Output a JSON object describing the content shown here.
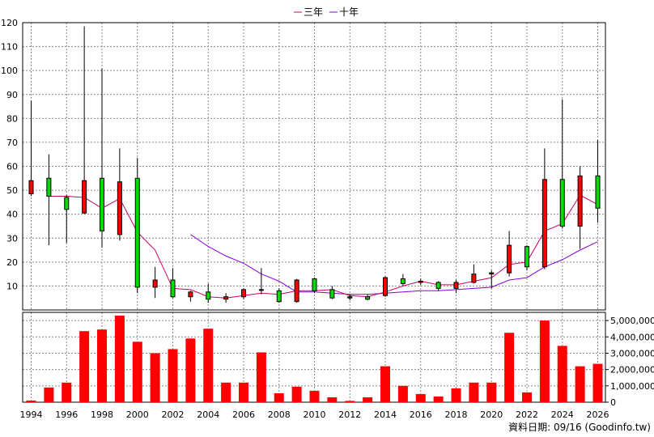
{
  "chart_data": {
    "type": "candlestick",
    "legend": [
      {
        "name": "三年",
        "color": "#cc0066"
      },
      {
        "name": "十年",
        "color": "#8800dd"
      }
    ],
    "source_note": "資料日期: 09/16 (Goodinfo.tw)",
    "x_ticks": [
      "1994",
      "1996",
      "1998",
      "2000",
      "2002",
      "2004",
      "2006",
      "2008",
      "2010",
      "2012",
      "2014",
      "2016",
      "2018",
      "2020",
      "2022",
      "2024",
      "2026"
    ],
    "price_axis": {
      "min": 0,
      "max": 120,
      "ticks": [
        10,
        20,
        30,
        40,
        50,
        60,
        70,
        80,
        90,
        100,
        110,
        120
      ]
    },
    "volume_axis": {
      "min": 0,
      "max": 5500000,
      "ticks": [
        0,
        1000000,
        2000000,
        3000000,
        4000000,
        5000000
      ],
      "tick_labels": [
        "0",
        "1,000,000",
        "2,000,000",
        "3,000,000",
        "4,000,000",
        "5,000,000"
      ]
    },
    "candles": [
      {
        "year": 1994,
        "open": 48.5,
        "close": 54,
        "high": 87.5,
        "low": 47.5
      },
      {
        "year": 1995,
        "open": 55,
        "close": 47.5,
        "high": 65,
        "low": 27
      },
      {
        "year": 1996,
        "open": 47,
        "close": 42,
        "high": 48,
        "low": 28
      },
      {
        "year": 1997,
        "open": 40.5,
        "close": 54,
        "high": 118.5,
        "low": 40
      },
      {
        "year": 1998,
        "open": 55,
        "close": 33,
        "high": 101,
        "low": 26
      },
      {
        "year": 1999,
        "open": 31.5,
        "close": 53.5,
        "high": 67.5,
        "low": 29
      },
      {
        "year": 2000,
        "open": 55,
        "close": 9.5,
        "high": 63.5,
        "low": 7
      },
      {
        "year": 2001,
        "open": 9.5,
        "close": 12.5,
        "high": 18,
        "low": 5
      },
      {
        "year": 2002,
        "open": 12.5,
        "close": 5.5,
        "high": 17.5,
        "low": 5
      },
      {
        "year": 2003,
        "open": 5.5,
        "close": 7.5,
        "high": 8,
        "low": 3.5
      },
      {
        "year": 2004,
        "open": 7.5,
        "close": 4.5,
        "high": 11,
        "low": 3
      },
      {
        "year": 2005,
        "open": 4.5,
        "close": 5.5,
        "high": 7,
        "low": 3
      },
      {
        "year": 2006,
        "open": 5.5,
        "close": 8.5,
        "high": 9,
        "low": 4.5
      },
      {
        "year": 2007,
        "open": 8.5,
        "close": 8.5,
        "high": 17.5,
        "low": 6.5
      },
      {
        "year": 2008,
        "open": 8,
        "close": 3.5,
        "high": 9,
        "low": 3
      },
      {
        "year": 2009,
        "open": 3.5,
        "close": 12.5,
        "high": 13,
        "low": 3
      },
      {
        "year": 2010,
        "open": 13,
        "close": 8,
        "high": 13.5,
        "low": 7
      },
      {
        "year": 2011,
        "open": 8.5,
        "close": 5,
        "high": 10,
        "low": 4.5
      },
      {
        "year": 2012,
        "open": 5,
        "close": 5.5,
        "high": 6.5,
        "low": 4
      },
      {
        "year": 2013,
        "open": 5.5,
        "close": 4.5,
        "high": 6.5,
        "low": 4
      },
      {
        "year": 2014,
        "open": 6,
        "close": 13.5,
        "high": 14,
        "low": 5.5
      },
      {
        "year": 2015,
        "open": 13,
        "close": 11,
        "high": 15,
        "low": 10
      },
      {
        "year": 2016,
        "open": 11.5,
        "close": 12,
        "high": 13,
        "low": 10.5
      },
      {
        "year": 2017,
        "open": 11.5,
        "close": 9,
        "high": 12,
        "low": 8
      },
      {
        "year": 2018,
        "open": 9,
        "close": 11.5,
        "high": 12.5,
        "low": 7
      },
      {
        "year": 2019,
        "open": 11.5,
        "close": 15,
        "high": 19,
        "low": 11
      },
      {
        "year": 2020,
        "open": 15,
        "close": 15.5,
        "high": 16.5,
        "low": 9
      },
      {
        "year": 2021,
        "open": 15.5,
        "close": 27,
        "high": 33,
        "low": 14
      },
      {
        "year": 2022,
        "open": 26.5,
        "close": 18,
        "high": 27,
        "low": 16.5
      },
      {
        "year": 2023,
        "open": 18,
        "close": 54.5,
        "high": 67.5,
        "low": 17
      },
      {
        "year": 2024,
        "open": 54.5,
        "close": 35,
        "high": 88,
        "low": 34
      },
      {
        "year": 2025,
        "open": 35,
        "close": 56,
        "high": 60,
        "low": 25.5
      },
      {
        "year": 2026,
        "open": 56,
        "close": 42.5,
        "high": 71,
        "low": 36.5
      }
    ],
    "ma_three_year": [
      {
        "year": 1995,
        "value": 47.5
      },
      {
        "year": 1996,
        "value": 47.5
      },
      {
        "year": 1997,
        "value": 47
      },
      {
        "year": 1998,
        "value": 42.5
      },
      {
        "year": 1999,
        "value": 46.5
      },
      {
        "year": 2000,
        "value": 32.5
      },
      {
        "year": 2001,
        "value": 25
      },
      {
        "year": 2002,
        "value": 9
      },
      {
        "year": 2003,
        "value": 8.5
      },
      {
        "year": 2004,
        "value": 5.5
      },
      {
        "year": 2005,
        "value": 5
      },
      {
        "year": 2006,
        "value": 6
      },
      {
        "year": 2007,
        "value": 7
      },
      {
        "year": 2008,
        "value": 6.5
      },
      {
        "year": 2009,
        "value": 8
      },
      {
        "year": 2010,
        "value": 8
      },
      {
        "year": 2011,
        "value": 8.5
      },
      {
        "year": 2012,
        "value": 6
      },
      {
        "year": 2013,
        "value": 5.5
      },
      {
        "year": 2014,
        "value": 7.5
      },
      {
        "year": 2015,
        "value": 10
      },
      {
        "year": 2016,
        "value": 12
      },
      {
        "year": 2017,
        "value": 10.5
      },
      {
        "year": 2018,
        "value": 10.5
      },
      {
        "year": 2019,
        "value": 12
      },
      {
        "year": 2020,
        "value": 13.5
      },
      {
        "year": 2021,
        "value": 19
      },
      {
        "year": 2022,
        "value": 20
      },
      {
        "year": 2023,
        "value": 33
      },
      {
        "year": 2024,
        "value": 36
      },
      {
        "year": 2025,
        "value": 48
      },
      {
        "year": 2026,
        "value": 44
      }
    ],
    "ma_ten_year": [
      {
        "year": 2003,
        "value": 31.5
      },
      {
        "year": 2004,
        "value": 26.5
      },
      {
        "year": 2005,
        "value": 22.5
      },
      {
        "year": 2006,
        "value": 19.5
      },
      {
        "year": 2007,
        "value": 15
      },
      {
        "year": 2008,
        "value": 12
      },
      {
        "year": 2009,
        "value": 7.5
      },
      {
        "year": 2010,
        "value": 7.5
      },
      {
        "year": 2011,
        "value": 7
      },
      {
        "year": 2012,
        "value": 6.5
      },
      {
        "year": 2013,
        "value": 6.5
      },
      {
        "year": 2014,
        "value": 7
      },
      {
        "year": 2015,
        "value": 7.5
      },
      {
        "year": 2016,
        "value": 8
      },
      {
        "year": 2017,
        "value": 8
      },
      {
        "year": 2018,
        "value": 8.5
      },
      {
        "year": 2019,
        "value": 9
      },
      {
        "year": 2020,
        "value": 9.5
      },
      {
        "year": 2021,
        "value": 12.5
      },
      {
        "year": 2022,
        "value": 13.5
      },
      {
        "year": 2023,
        "value": 18
      },
      {
        "year": 2024,
        "value": 21
      },
      {
        "year": 2025,
        "value": 25
      },
      {
        "year": 2026,
        "value": 28.5
      }
    ],
    "volume": [
      {
        "year": 1994,
        "value": 100000
      },
      {
        "year": 1995,
        "value": 900000
      },
      {
        "year": 1996,
        "value": 1200000
      },
      {
        "year": 1997,
        "value": 4350000
      },
      {
        "year": 1998,
        "value": 4450000
      },
      {
        "year": 1999,
        "value": 5300000
      },
      {
        "year": 2000,
        "value": 3700000
      },
      {
        "year": 2001,
        "value": 3000000
      },
      {
        "year": 2002,
        "value": 3250000
      },
      {
        "year": 2003,
        "value": 3900000
      },
      {
        "year": 2004,
        "value": 4500000
      },
      {
        "year": 2005,
        "value": 1200000
      },
      {
        "year": 2006,
        "value": 1200000
      },
      {
        "year": 2007,
        "value": 3050000
      },
      {
        "year": 2008,
        "value": 550000
      },
      {
        "year": 2009,
        "value": 950000
      },
      {
        "year": 2010,
        "value": 700000
      },
      {
        "year": 2011,
        "value": 300000
      },
      {
        "year": 2012,
        "value": 80000
      },
      {
        "year": 2013,
        "value": 300000
      },
      {
        "year": 2014,
        "value": 2200000
      },
      {
        "year": 2015,
        "value": 1000000
      },
      {
        "year": 2016,
        "value": 500000
      },
      {
        "year": 2017,
        "value": 350000
      },
      {
        "year": 2018,
        "value": 850000
      },
      {
        "year": 2019,
        "value": 1200000
      },
      {
        "year": 2020,
        "value": 1200000
      },
      {
        "year": 2021,
        "value": 4250000
      },
      {
        "year": 2022,
        "value": 600000
      },
      {
        "year": 2023,
        "value": 5000000
      },
      {
        "year": 2024,
        "value": 3450000
      },
      {
        "year": 2025,
        "value": 2200000
      },
      {
        "year": 2026,
        "value": 2350000
      }
    ],
    "colors": {
      "up": "#ff0000",
      "down": "#00dd00",
      "volume": "#ff0000",
      "grid": "#888888"
    }
  }
}
